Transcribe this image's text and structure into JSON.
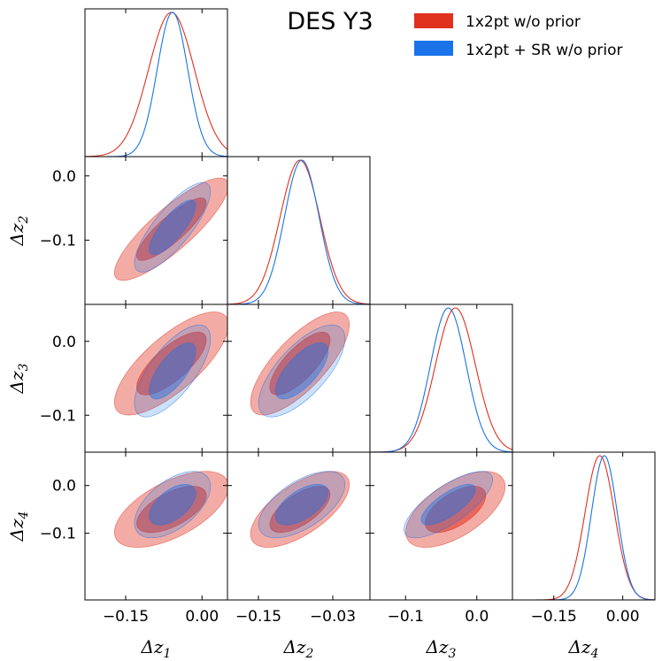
{
  "chart_data": {
    "type": "triangle",
    "title": "DES Y3",
    "parameters": [
      "Δz1",
      "Δz2",
      "Δz3",
      "Δz4"
    ],
    "axis_labels": [
      {
        "base": "Δz",
        "sub": "1"
      },
      {
        "base": "Δz",
        "sub": "2"
      },
      {
        "base": "Δz",
        "sub": "3"
      },
      {
        "base": "Δz",
        "sub": "4"
      }
    ],
    "ranges": [
      [
        -0.23,
        0.05
      ],
      [
        -0.2,
        0.03
      ],
      [
        -0.15,
        0.05
      ],
      [
        -0.24,
        0.07
      ]
    ],
    "x_ticks": [
      {
        "values": [
          -0.15,
          0.0
        ],
        "labels": [
          "−0.15",
          "0.00"
        ]
      },
      {
        "values": [
          -0.15,
          -0.03
        ],
        "labels": [
          "−0.15",
          "−0.03"
        ]
      },
      {
        "values": [
          -0.1,
          0.0
        ],
        "labels": [
          "−0.1",
          "0.0"
        ]
      },
      {
        "values": [
          -0.15,
          0.0
        ],
        "labels": [
          "−0.15",
          "0.00"
        ]
      }
    ],
    "y_ticks": [
      null,
      {
        "values": [
          0.0,
          -0.1
        ],
        "labels": [
          "0.0",
          "−0.1"
        ]
      },
      {
        "values": [
          0.0,
          -0.1
        ],
        "labels": [
          "0.0",
          "−0.1"
        ]
      },
      {
        "values": [
          0.0,
          -0.1
        ],
        "labels": [
          "0.0",
          "−0.1"
        ]
      }
    ],
    "legend_position": "top-right",
    "series": [
      {
        "name": "1x2pt w/o prior",
        "color": "#e0301e",
        "marginals": [
          {
            "mean": -0.06,
            "sigma": 0.045
          },
          {
            "mean": -0.083,
            "sigma": 0.032
          },
          {
            "mean": -0.03,
            "sigma": 0.028
          },
          {
            "mean": -0.05,
            "sigma": 0.032
          }
        ],
        "correlations": [
          [
            1,
            2,
            0.85
          ],
          [
            1,
            3,
            0.75
          ],
          [
            1,
            4,
            0.6
          ],
          [
            2,
            3,
            0.75
          ],
          [
            2,
            4,
            0.65
          ],
          [
            3,
            4,
            0.6
          ]
        ]
      },
      {
        "name": "1x2pt + SR w/o prior",
        "color": "#1a73e8",
        "marginals": [
          {
            "mean": -0.058,
            "sigma": 0.03
          },
          {
            "mean": -0.08,
            "sigma": 0.028
          },
          {
            "mean": -0.04,
            "sigma": 0.025
          },
          {
            "mean": -0.04,
            "sigma": 0.028
          }
        ],
        "correlations": [
          [
            1,
            2,
            0.8
          ],
          [
            1,
            3,
            0.7
          ],
          [
            1,
            4,
            0.55
          ],
          [
            2,
            3,
            0.7
          ],
          [
            2,
            4,
            0.6
          ],
          [
            3,
            4,
            0.75
          ]
        ]
      }
    ]
  }
}
